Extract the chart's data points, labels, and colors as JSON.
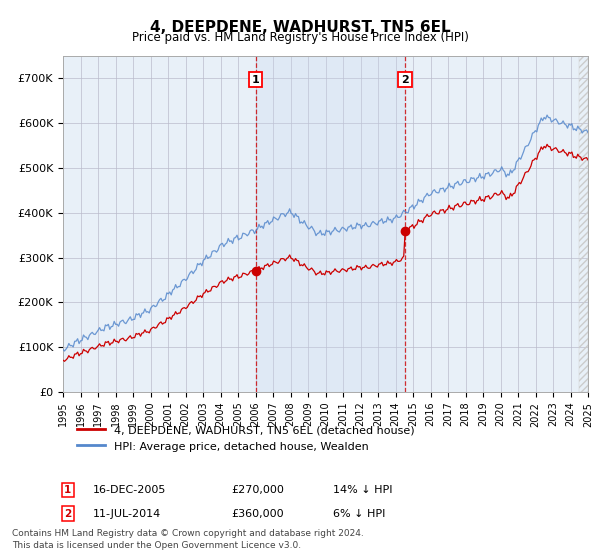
{
  "title": "4, DEEPDENE, WADHURST, TN5 6EL",
  "subtitle": "Price paid vs. HM Land Registry's House Price Index (HPI)",
  "hpi_color": "#5588cc",
  "price_color": "#cc0000",
  "marker_color": "#cc0000",
  "bg_color": "#ffffff",
  "plot_bg_color": "#e8f0f8",
  "grid_color": "#bbbbcc",
  "transaction1_x": 2006.0,
  "transaction1_price": 270000,
  "transaction1_date": "16-DEC-2005",
  "transaction1_pct": "14%",
  "transaction2_x": 2014.55,
  "transaction2_price": 360000,
  "transaction2_date": "11-JUL-2014",
  "transaction2_pct": "6%",
  "legend_line1": "4, DEEPDENE, WADHURST, TN5 6EL (detached house)",
  "legend_line2": "HPI: Average price, detached house, Wealden",
  "footer": "Contains HM Land Registry data © Crown copyright and database right 2024.\nThis data is licensed under the Open Government Licence v3.0.",
  "xstart_year": 1995,
  "xend_year": 2025,
  "ylim": [
    0,
    750000
  ],
  "yticks": [
    0,
    100000,
    200000,
    300000,
    400000,
    500000,
    600000,
    700000
  ],
  "ytick_labels": [
    "£0",
    "£100K",
    "£200K",
    "£300K",
    "£400K",
    "£500K",
    "£600K",
    "£700K"
  ]
}
